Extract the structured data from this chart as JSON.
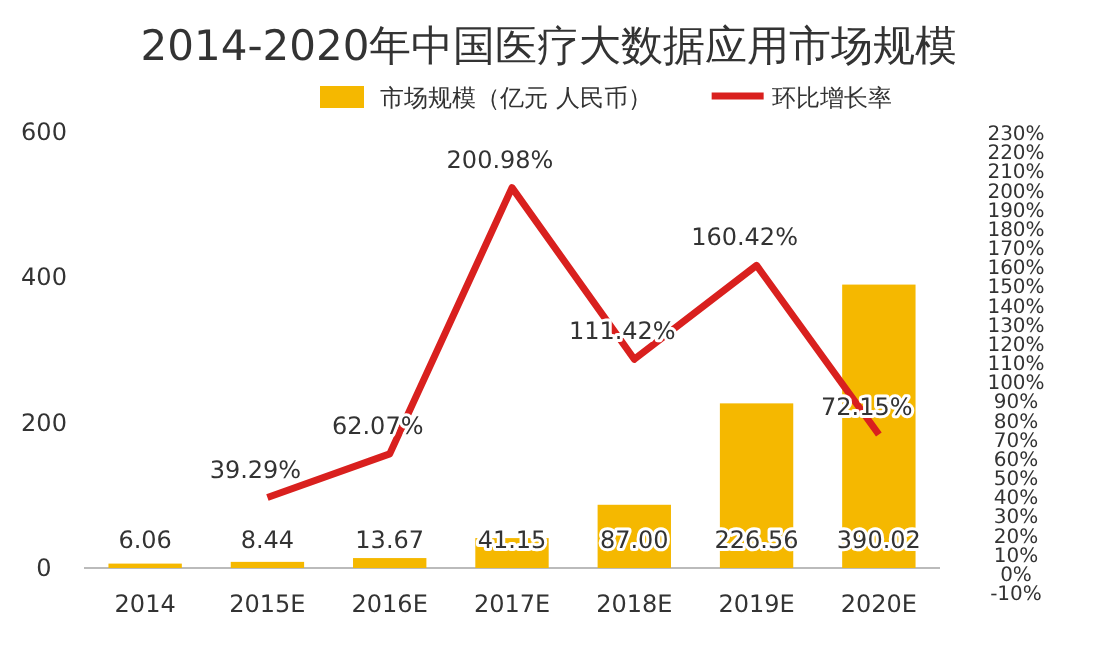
{
  "chart_data": {
    "type": "bar",
    "title": "2014-2020年中国医疗大数据应用市场规模",
    "categories": [
      "2014",
      "2015E",
      "2016E",
      "2017E",
      "2018E",
      "2019E",
      "2020E"
    ],
    "series": [
      {
        "name": "市场规模（亿元 人民币）",
        "color": "#f5b800",
        "values": [
          6.06,
          8.44,
          13.67,
          41.15,
          87.0,
          226.56,
          390.02
        ],
        "value_labels": [
          "6.06",
          "8.44",
          "13.67",
          "41.15",
          "87.00",
          "226.56",
          "390.02"
        ]
      },
      {
        "name": "环比增长率",
        "type": "line",
        "axis": "y2",
        "color": "#d9201e",
        "values": [
          null,
          39.29,
          62.07,
          200.98,
          111.42,
          160.42,
          72.15
        ],
        "value_labels": [
          null,
          "39.29%",
          "62.07%",
          "200.98%",
          "111.42%",
          "160.42%",
          "72.15%"
        ]
      }
    ],
    "ylim": [
      0,
      600
    ],
    "yticks": [
      0,
      200,
      400,
      600
    ],
    "y2lim": [
      -10,
      230
    ],
    "y2ticks": [
      {
        "value": -10,
        "label": "-10%"
      },
      {
        "value": 0,
        "label": "0%"
      },
      {
        "value": 10,
        "label": "10%"
      },
      {
        "value": 20,
        "label": "20%"
      },
      {
        "value": 30,
        "label": "30%"
      },
      {
        "value": 40,
        "label": "40%"
      },
      {
        "value": 50,
        "label": "50%"
      },
      {
        "value": 60,
        "label": "60%"
      },
      {
        "value": 70,
        "label": "70%"
      },
      {
        "value": 80,
        "label": "80%"
      },
      {
        "value": 90,
        "label": "90%"
      },
      {
        "value": 100,
        "label": "100%"
      },
      {
        "value": 110,
        "label": "110%"
      },
      {
        "value": 120,
        "label": "120%"
      },
      {
        "value": 130,
        "label": "130%"
      },
      {
        "value": 140,
        "label": "140%"
      },
      {
        "value": 150,
        "label": "150%"
      },
      {
        "value": 160,
        "label": "160%"
      },
      {
        "value": 170,
        "label": "170%"
      },
      {
        "value": 180,
        "label": "180%"
      },
      {
        "value": 190,
        "label": "190%"
      },
      {
        "value": 200,
        "label": "200%"
      },
      {
        "value": 210,
        "label": "210%"
      },
      {
        "value": 220,
        "label": "220%"
      },
      {
        "value": 230,
        "label": "230%"
      }
    ],
    "legend": "top",
    "grid": false,
    "marker": "none",
    "line_style": "solid"
  }
}
